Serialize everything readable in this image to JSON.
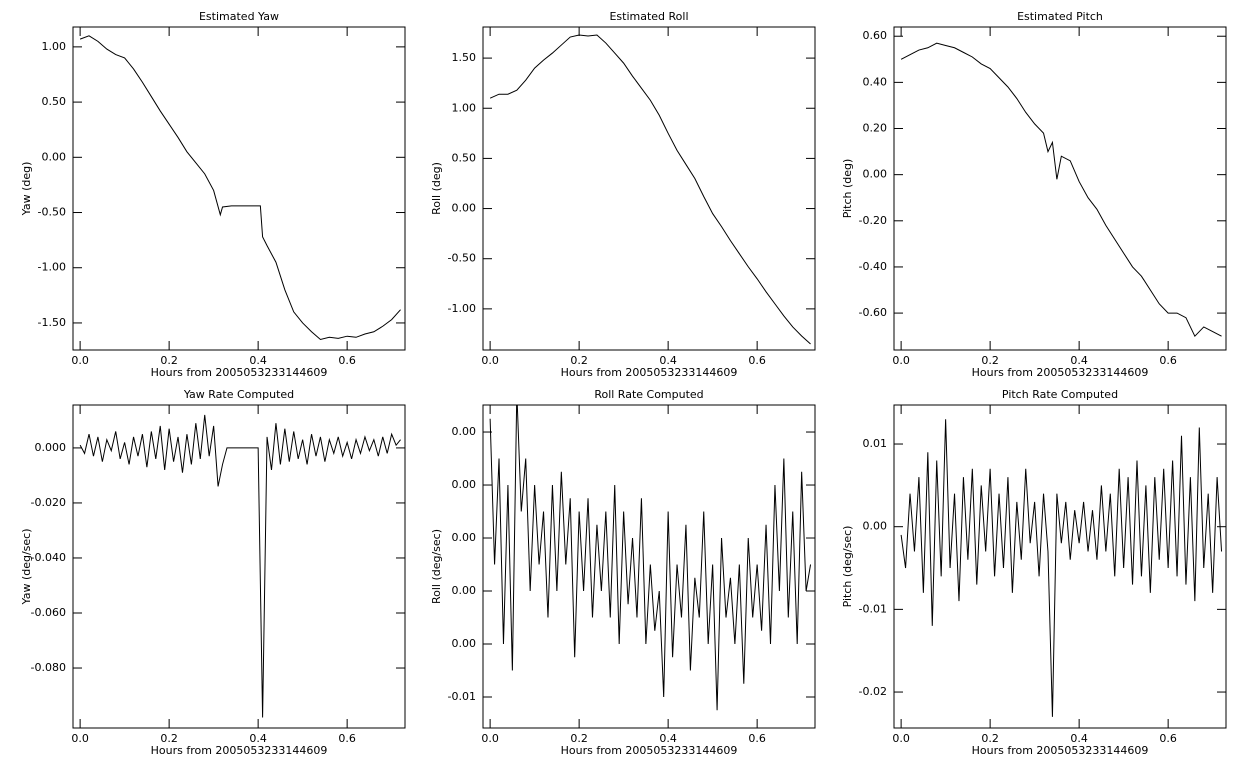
{
  "chart_data": [
    {
      "type": "line",
      "title": "Estimated Yaw",
      "xlabel": "Hours from 2005053233144609",
      "ylabel": "Yaw (deg)",
      "color": "#000000",
      "x": [
        0,
        0.02,
        0.04,
        0.06,
        0.08,
        0.1,
        0.12,
        0.14,
        0.16,
        0.18,
        0.2,
        0.22,
        0.24,
        0.26,
        0.28,
        0.3,
        0.315,
        0.32,
        0.34,
        0.36,
        0.38,
        0.4,
        0.405,
        0.41,
        0.42,
        0.44,
        0.46,
        0.48,
        0.5,
        0.52,
        0.54,
        0.56,
        0.58,
        0.6,
        0.62,
        0.64,
        0.66,
        0.68,
        0.7,
        0.72
      ],
      "values": [
        1.07,
        1.1,
        1.05,
        0.98,
        0.93,
        0.9,
        0.8,
        0.68,
        0.55,
        0.42,
        0.3,
        0.18,
        0.05,
        -0.05,
        -0.15,
        -0.3,
        -0.52,
        -0.45,
        -0.44,
        -0.44,
        -0.44,
        -0.44,
        -0.44,
        -0.72,
        -0.8,
        -0.95,
        -1.2,
        -1.4,
        -1.5,
        -1.58,
        -1.65,
        -1.63,
        -1.64,
        -1.62,
        -1.63,
        -1.6,
        -1.58,
        -1.53,
        -1.47,
        -1.38
      ],
      "xlim": [
        -0.016,
        0.73
      ],
      "xticks": [
        {
          "value": 0,
          "label": "0.0"
        },
        0.2,
        0.4,
        0.6
      ],
      "ylim": [
        -1.745,
        1.18
      ],
      "yticks": [
        {
          "value": 1,
          "label": "1.00"
        },
        {
          "value": 0.5,
          "label": "0.50"
        },
        {
          "value": 0,
          "label": "0.00"
        },
        {
          "value": -0.5,
          "label": "-0.50"
        },
        {
          "value": -1,
          "label": "-1.00"
        },
        {
          "value": -1.5,
          "label": "-1.50"
        }
      ]
    },
    {
      "type": "line",
      "title": "Estimated Roll",
      "xlabel": "Hours from 2005053233144609",
      "ylabel": "Roll (deg)",
      "color": "#000000",
      "x": [
        0,
        0.02,
        0.04,
        0.06,
        0.08,
        0.1,
        0.12,
        0.14,
        0.16,
        0.18,
        0.2,
        0.22,
        0.24,
        0.26,
        0.28,
        0.3,
        0.32,
        0.34,
        0.36,
        0.38,
        0.4,
        0.42,
        0.44,
        0.46,
        0.48,
        0.5,
        0.52,
        0.54,
        0.56,
        0.58,
        0.6,
        0.62,
        0.64,
        0.66,
        0.68,
        0.7,
        0.72
      ],
      "values": [
        1.1,
        1.14,
        1.14,
        1.18,
        1.28,
        1.4,
        1.48,
        1.55,
        1.63,
        1.71,
        1.73,
        1.72,
        1.73,
        1.65,
        1.55,
        1.45,
        1.32,
        1.2,
        1.08,
        0.93,
        0.75,
        0.58,
        0.44,
        0.3,
        0.12,
        -0.05,
        -0.18,
        -0.32,
        -0.45,
        -0.58,
        -0.7,
        -0.83,
        -0.95,
        -1.07,
        -1.18,
        -1.27,
        -1.35
      ],
      "xlim": [
        -0.016,
        0.73
      ],
      "xticks": [
        {
          "value": 0,
          "label": "0.0"
        },
        0.2,
        0.4,
        0.6
      ],
      "ylim": [
        -1.41,
        1.81
      ],
      "yticks": [
        {
          "value": 1.5,
          "label": "1.50"
        },
        {
          "value": 1,
          "label": "1.00"
        },
        {
          "value": 0.5,
          "label": "0.50"
        },
        {
          "value": 0,
          "label": "0.00"
        },
        {
          "value": -0.5,
          "label": "-0.50"
        },
        {
          "value": -1,
          "label": "-1.00"
        }
      ]
    },
    {
      "type": "line",
      "title": "Estimated Pitch",
      "xlabel": "Hours from 2005053233144609",
      "ylabel": "Pitch (deg)",
      "color": "#000000",
      "x": [
        0,
        0.02,
        0.04,
        0.06,
        0.08,
        0.1,
        0.12,
        0.14,
        0.16,
        0.18,
        0.2,
        0.22,
        0.24,
        0.26,
        0.28,
        0.3,
        0.32,
        0.33,
        0.34,
        0.35,
        0.36,
        0.38,
        0.4,
        0.42,
        0.44,
        0.46,
        0.48,
        0.5,
        0.52,
        0.54,
        0.56,
        0.58,
        0.6,
        0.62,
        0.64,
        0.66,
        0.68,
        0.7,
        0.72
      ],
      "values": [
        0.5,
        0.52,
        0.54,
        0.55,
        0.57,
        0.56,
        0.55,
        0.53,
        0.51,
        0.48,
        0.46,
        0.42,
        0.38,
        0.33,
        0.27,
        0.22,
        0.18,
        0.1,
        0.14,
        -0.02,
        0.08,
        0.06,
        -0.03,
        -0.1,
        -0.15,
        -0.22,
        -0.28,
        -0.34,
        -0.4,
        -0.44,
        -0.5,
        -0.56,
        -0.6,
        -0.6,
        -0.62,
        -0.7,
        -0.66,
        -0.68,
        -0.7
      ],
      "xlim": [
        -0.016,
        0.73
      ],
      "xticks": [
        {
          "value": 0,
          "label": "0.0"
        },
        0.2,
        0.4,
        0.6
      ],
      "ylim": [
        -0.76,
        0.64
      ],
      "yticks": [
        {
          "value": 0.6,
          "label": "0.60"
        },
        {
          "value": 0.4,
          "label": "0.40"
        },
        {
          "value": 0.2,
          "label": "0.20"
        },
        {
          "value": 0,
          "label": "0.00"
        },
        {
          "value": -0.2,
          "label": "-0.20"
        },
        {
          "value": -0.4,
          "label": "-0.40"
        },
        {
          "value": -0.6,
          "label": "-0.60"
        }
      ]
    },
    {
      "type": "line",
      "title": "Yaw Rate Computed",
      "xlabel": "Hours from 2005053233144609",
      "ylabel": "Yaw (deg/sec)",
      "color": "#000000",
      "x": [
        0,
        0.01,
        0.02,
        0.03,
        0.04,
        0.05,
        0.06,
        0.07,
        0.08,
        0.09,
        0.1,
        0.11,
        0.12,
        0.13,
        0.14,
        0.15,
        0.16,
        0.17,
        0.18,
        0.19,
        0.2,
        0.21,
        0.22,
        0.23,
        0.24,
        0.25,
        0.26,
        0.27,
        0.28,
        0.29,
        0.3,
        0.31,
        0.32,
        0.33,
        0.34,
        0.35,
        0.36,
        0.37,
        0.38,
        0.39,
        0.4,
        0.41,
        0.42,
        0.43,
        0.44,
        0.45,
        0.46,
        0.47,
        0.48,
        0.49,
        0.5,
        0.51,
        0.52,
        0.53,
        0.54,
        0.55,
        0.56,
        0.57,
        0.58,
        0.59,
        0.6,
        0.61,
        0.62,
        0.63,
        0.64,
        0.65,
        0.66,
        0.67,
        0.68,
        0.69,
        0.7,
        0.71,
        0.72
      ],
      "values": [
        0.001,
        -0.002,
        0.005,
        -0.003,
        0.004,
        -0.005,
        0.003,
        -0.001,
        0.006,
        -0.004,
        0.002,
        -0.006,
        0.004,
        -0.003,
        0.005,
        -0.007,
        0.006,
        -0.004,
        0.008,
        -0.008,
        0.007,
        -0.005,
        0.004,
        -0.009,
        0.005,
        -0.006,
        0.009,
        -0.004,
        0.012,
        -0.003,
        0.008,
        -0.014,
        -0.006,
        0,
        0,
        0,
        0,
        0,
        0,
        0,
        0,
        -0.098,
        0.004,
        -0.008,
        0.009,
        -0.006,
        0.007,
        -0.005,
        0.006,
        -0.004,
        0.003,
        -0.006,
        0.005,
        -0.003,
        0.004,
        -0.005,
        0.003,
        -0.002,
        0.004,
        -0.003,
        0.002,
        -0.004,
        0.003,
        -0.002,
        0.004,
        -0.001,
        0.003,
        -0.003,
        0.004,
        -0.002,
        0.005,
        0.001,
        0.003
      ],
      "xlim": [
        -0.016,
        0.73
      ],
      "xticks": [
        {
          "value": 0,
          "label": "0.0"
        },
        0.2,
        0.4,
        0.6
      ],
      "ylim": [
        -0.1018,
        0.0156
      ],
      "yticks": [
        {
          "value": 0,
          "label": "0.000"
        },
        {
          "value": -0.02,
          "label": "-0.020"
        },
        {
          "value": -0.04,
          "label": "-0.040"
        },
        {
          "value": -0.06,
          "label": "-0.060"
        },
        {
          "value": -0.08,
          "label": "-0.080"
        }
      ]
    },
    {
      "type": "line",
      "title": "Roll Rate Computed",
      "xlabel": "Hours from 2005053233144609",
      "ylabel": "Roll (deg/sec)",
      "color": "#000000",
      "x": [
        0,
        0.01,
        0.02,
        0.03,
        0.04,
        0.05,
        0.06,
        0.07,
        0.08,
        0.09,
        0.1,
        0.11,
        0.12,
        0.13,
        0.14,
        0.15,
        0.16,
        0.17,
        0.18,
        0.19,
        0.2,
        0.21,
        0.22,
        0.23,
        0.24,
        0.25,
        0.26,
        0.27,
        0.28,
        0.29,
        0.3,
        0.31,
        0.32,
        0.33,
        0.34,
        0.35,
        0.36,
        0.37,
        0.38,
        0.39,
        0.4,
        0.41,
        0.42,
        0.43,
        0.44,
        0.45,
        0.46,
        0.47,
        0.48,
        0.49,
        0.5,
        0.51,
        0.52,
        0.53,
        0.54,
        0.55,
        0.56,
        0.57,
        0.58,
        0.59,
        0.6,
        0.61,
        0.62,
        0.63,
        0.64,
        0.65,
        0.66,
        0.67,
        0.68,
        0.69,
        0.7,
        0.71,
        0.72
      ],
      "values": [
        0.0045,
        -0.001,
        0.003,
        -0.004,
        0.002,
        -0.005,
        0.0055,
        0.001,
        0.003,
        -0.002,
        0.002,
        -0.001,
        0.001,
        -0.003,
        0.002,
        -0.002,
        0.0025,
        -0.001,
        0.0015,
        -0.0045,
        0.001,
        -0.002,
        0.0015,
        -0.003,
        0.0005,
        -0.002,
        0.001,
        -0.003,
        0.002,
        -0.004,
        0.001,
        -0.0025,
        0,
        -0.003,
        0.0015,
        -0.004,
        -0.001,
        -0.0035,
        -0.002,
        -0.006,
        0.001,
        -0.0045,
        -0.001,
        -0.003,
        0.0005,
        -0.005,
        -0.0015,
        -0.003,
        0.001,
        -0.004,
        -0.001,
        -0.0065,
        0,
        -0.003,
        -0.0015,
        -0.004,
        -0.001,
        -0.0055,
        0,
        -0.003,
        -0.001,
        -0.0035,
        0.0005,
        -0.004,
        0.002,
        -0.002,
        0.003,
        -0.003,
        0.001,
        -0.004,
        0.0025,
        -0.002,
        -0.001
      ],
      "xlim": [
        -0.016,
        0.73
      ],
      "xticks": [
        {
          "value": 0,
          "label": "0.0"
        },
        0.2,
        0.4,
        0.6
      ],
      "ylim": [
        -0.00717,
        0.00502
      ],
      "yticks": [
        {
          "value": 0.004,
          "label": "0.00"
        },
        {
          "value": 0.002,
          "label": "0.00"
        },
        {
          "value": 0,
          "label": "0.00"
        },
        {
          "value": -0.002,
          "label": "0.00"
        },
        {
          "value": -0.004,
          "label": "0.00"
        },
        {
          "value": -0.006,
          "label": "-0.01"
        }
      ]
    },
    {
      "type": "line",
      "title": "Pitch Rate Computed",
      "xlabel": "Hours from 2005053233144609",
      "ylabel": "Pitch (deg/sec)",
      "color": "#000000",
      "x": [
        0,
        0.01,
        0.02,
        0.03,
        0.04,
        0.05,
        0.06,
        0.07,
        0.08,
        0.09,
        0.1,
        0.11,
        0.12,
        0.13,
        0.14,
        0.15,
        0.16,
        0.17,
        0.18,
        0.19,
        0.2,
        0.21,
        0.22,
        0.23,
        0.24,
        0.25,
        0.26,
        0.27,
        0.28,
        0.29,
        0.3,
        0.31,
        0.32,
        0.33,
        0.34,
        0.35,
        0.36,
        0.37,
        0.38,
        0.39,
        0.4,
        0.41,
        0.42,
        0.43,
        0.44,
        0.45,
        0.46,
        0.47,
        0.48,
        0.49,
        0.5,
        0.51,
        0.52,
        0.53,
        0.54,
        0.55,
        0.56,
        0.57,
        0.58,
        0.59,
        0.6,
        0.61,
        0.62,
        0.63,
        0.64,
        0.65,
        0.66,
        0.67,
        0.68,
        0.69,
        0.7,
        0.71,
        0.72
      ],
      "values": [
        -0.001,
        -0.005,
        0.004,
        -0.003,
        0.006,
        -0.008,
        0.009,
        -0.012,
        0.008,
        -0.006,
        0.013,
        -0.005,
        0.004,
        -0.009,
        0.006,
        -0.004,
        0.007,
        -0.007,
        0.005,
        -0.003,
        0.007,
        -0.006,
        0.004,
        -0.005,
        0.006,
        -0.008,
        0.003,
        -0.004,
        0.007,
        -0.002,
        0.003,
        -0.006,
        0.004,
        -0.003,
        -0.023,
        0.004,
        -0.002,
        0.003,
        -0.004,
        0.002,
        -0.002,
        0.003,
        -0.003,
        0.002,
        -0.004,
        0.005,
        -0.003,
        0.004,
        -0.006,
        0.007,
        -0.005,
        0.006,
        -0.007,
        0.008,
        -0.006,
        0.005,
        -0.008,
        0.006,
        -0.004,
        0.007,
        -0.005,
        0.008,
        -0.006,
        0.011,
        -0.007,
        0.006,
        -0.009,
        0.012,
        -0.005,
        0.004,
        -0.008,
        0.006,
        -0.003
      ],
      "xlim": [
        -0.016,
        0.73
      ],
      "xticks": [
        {
          "value": 0,
          "label": "0.0"
        },
        0.2,
        0.4,
        0.6
      ],
      "ylim": [
        -0.02435,
        0.01472
      ],
      "yticks": [
        0.01,
        {
          "value": 0,
          "label": "0.00"
        },
        -0.01,
        -0.02
      ]
    }
  ]
}
